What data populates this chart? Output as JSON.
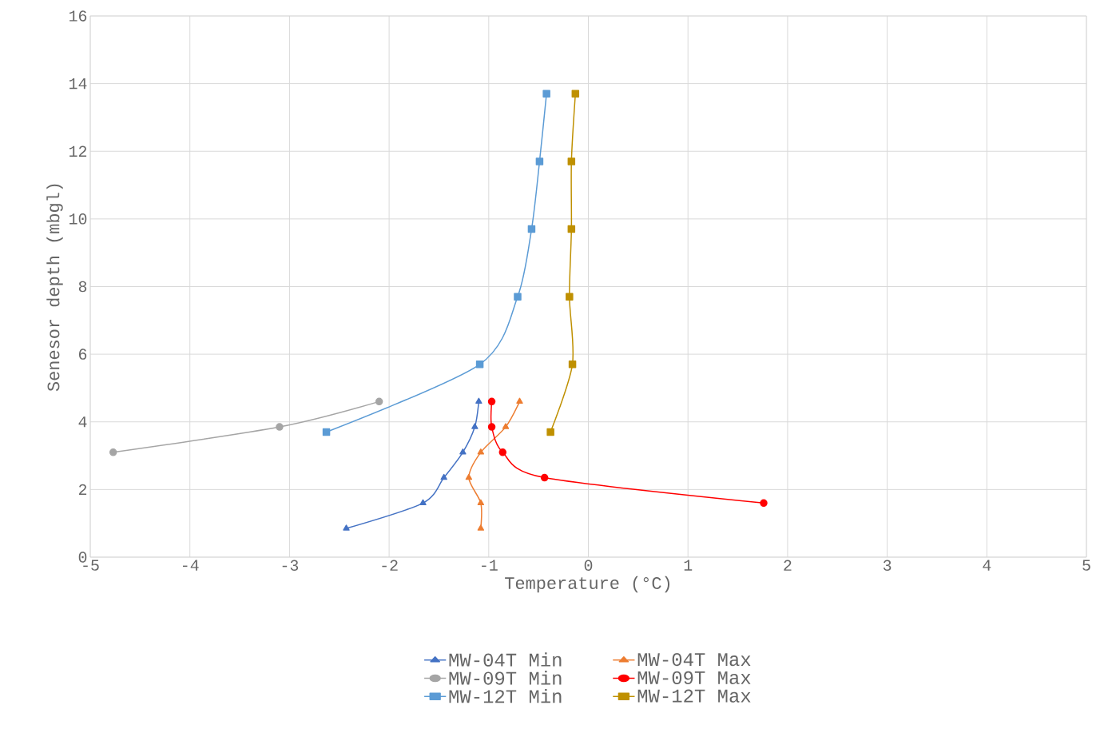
{
  "chart_data": {
    "type": "line",
    "xlabel": "Temperature (°C)",
    "ylabel": "Senesor depth (mbgl)",
    "xlim": [
      -5,
      5
    ],
    "xticks": [
      -5,
      -4,
      -3,
      -2,
      -1,
      0,
      1,
      2,
      3,
      4,
      5
    ],
    "ylim": [
      0,
      16
    ],
    "yticks": [
      0,
      2,
      4,
      6,
      8,
      10,
      12,
      14,
      16
    ],
    "grid": true,
    "legend": "bottom",
    "series": [
      {
        "name": "MW-04T Min",
        "color": "#4472c4",
        "marker": "triangle",
        "x": [
          -1.1,
          -1.14,
          -1.26,
          -1.45,
          -1.66,
          -2.43
        ],
        "values": [
          4.6,
          3.85,
          3.1,
          2.35,
          1.6,
          0.85
        ]
      },
      {
        "name": "MW-04T Max",
        "color": "#ed7d31",
        "marker": "triangle",
        "x": [
          -0.69,
          -0.83,
          -1.08,
          -1.2,
          -1.08,
          -1.08
        ],
        "values": [
          4.6,
          3.85,
          3.1,
          2.35,
          1.6,
          0.85
        ]
      },
      {
        "name": "MW-09T Min",
        "color": "#a5a5a5",
        "marker": "circle",
        "x": [
          -2.1,
          -3.1,
          -4.77
        ],
        "values": [
          4.6,
          3.85,
          3.1
        ]
      },
      {
        "name": "MW-09T Max",
        "color": "#ff0000",
        "marker": "circle",
        "x": [
          -0.97,
          -0.97,
          -0.86,
          -0.44,
          1.76
        ],
        "values": [
          4.6,
          3.85,
          3.1,
          2.35,
          1.6
        ]
      },
      {
        "name": "MW-12T Min",
        "color": "#5b9bd5",
        "marker": "square",
        "x": [
          -0.42,
          -0.49,
          -0.57,
          -0.71,
          -1.09,
          -2.63
        ],
        "values": [
          13.7,
          11.7,
          9.7,
          7.7,
          5.7,
          3.7
        ]
      },
      {
        "name": "MW-12T Max",
        "color": "#bf9000",
        "marker": "square",
        "x": [
          -0.13,
          -0.17,
          -0.17,
          -0.19,
          -0.16,
          -0.38
        ],
        "values": [
          13.7,
          11.7,
          9.7,
          7.7,
          5.7,
          3.7
        ]
      }
    ]
  }
}
